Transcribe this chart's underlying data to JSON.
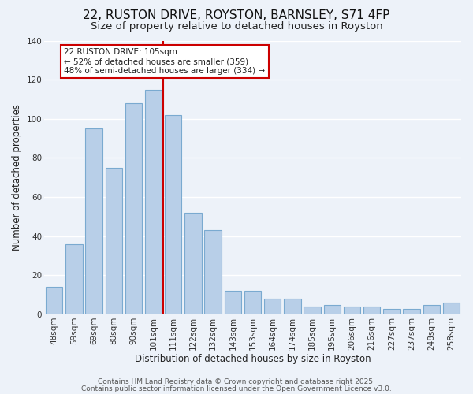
{
  "title": "22, RUSTON DRIVE, ROYSTON, BARNSLEY, S71 4FP",
  "subtitle": "Size of property relative to detached houses in Royston",
  "xlabel": "Distribution of detached houses by size in Royston",
  "ylabel": "Number of detached properties",
  "categories": [
    "48sqm",
    "59sqm",
    "69sqm",
    "80sqm",
    "90sqm",
    "101sqm",
    "111sqm",
    "122sqm",
    "132sqm",
    "143sqm",
    "153sqm",
    "164sqm",
    "174sqm",
    "185sqm",
    "195sqm",
    "206sqm",
    "216sqm",
    "227sqm",
    "237sqm",
    "248sqm",
    "258sqm"
  ],
  "values": [
    14,
    36,
    95,
    75,
    108,
    115,
    102,
    52,
    43,
    12,
    12,
    8,
    8,
    4,
    5,
    4,
    4,
    3,
    3,
    5,
    6
  ],
  "bar_color": "#b8cfe8",
  "bar_edge_color": "#7aaad0",
  "vline_x": 5.5,
  "vline_color": "#cc0000",
  "annotation_title": "22 RUSTON DRIVE: 105sqm",
  "annotation_line1": "← 52% of detached houses are smaller (359)",
  "annotation_line2": "48% of semi-detached houses are larger (334) →",
  "annotation_box_color": "#ffffff",
  "annotation_box_edge": "#cc0000",
  "ylim": [
    0,
    140
  ],
  "yticks": [
    0,
    20,
    40,
    60,
    80,
    100,
    120,
    140
  ],
  "footer1": "Contains HM Land Registry data © Crown copyright and database right 2025.",
  "footer2": "Contains public sector information licensed under the Open Government Licence v3.0.",
  "bg_color": "#edf2f9",
  "grid_color": "#ffffff",
  "title_fontsize": 11,
  "subtitle_fontsize": 9.5,
  "axis_label_fontsize": 8.5,
  "tick_fontsize": 7.5,
  "footer_fontsize": 6.5
}
